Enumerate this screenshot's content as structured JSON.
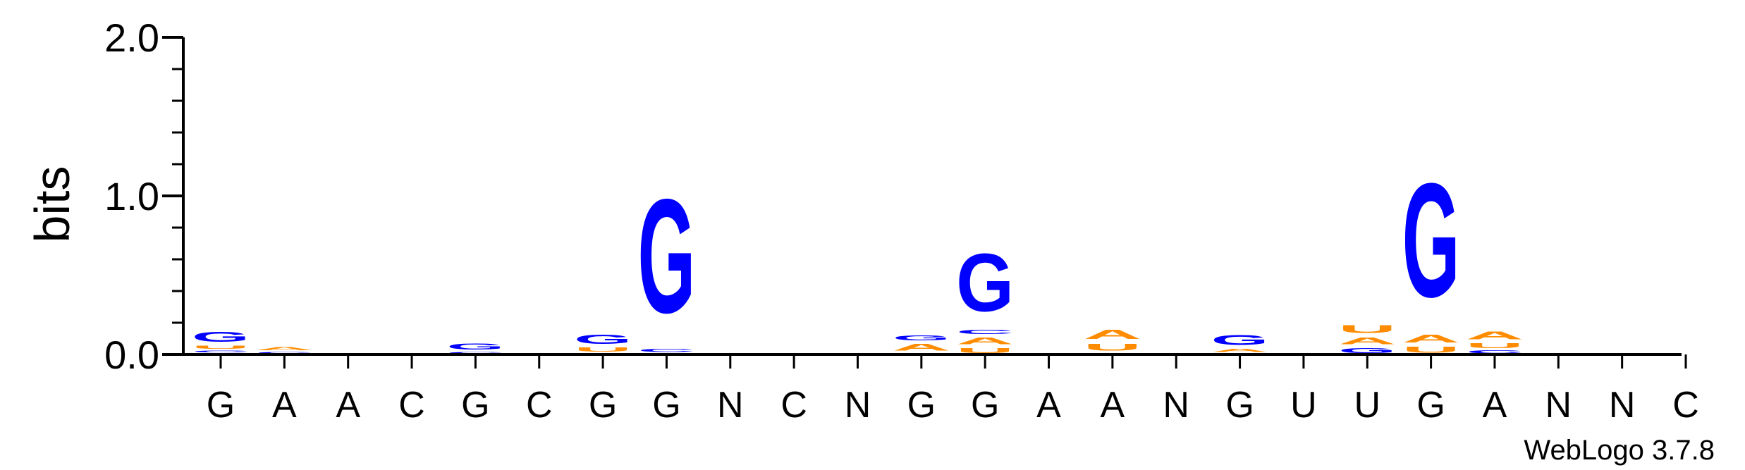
{
  "chart_data": {
    "type": "sequence-logo",
    "ylabel": "bits",
    "ylim": [
      0,
      2.0
    ],
    "yticks": [
      {
        "value": 0.0,
        "label": "0.0"
      },
      {
        "value": 1.0,
        "label": "1.0"
      },
      {
        "value": 2.0,
        "label": "2.0"
      }
    ],
    "x_labels": [
      "G",
      "A",
      "A",
      "C",
      "G",
      "C",
      "G",
      "G",
      "N",
      "C",
      "N",
      "G",
      "G",
      "A",
      "A",
      "N",
      "G",
      "U",
      "U",
      "G",
      "A",
      "N",
      "N",
      "C"
    ],
    "colors": {
      "G": "#0000ff",
      "C": "#0000ff",
      "A": "#ff8c00",
      "U": "#ff8c00"
    },
    "stacks": [
      {
        "letters": [
          {
            "l": "A",
            "h": 0.01
          },
          {
            "l": "C",
            "h": 0.02
          },
          {
            "l": "U",
            "h": 0.03
          },
          {
            "l": "G",
            "h": 0.1
          }
        ]
      },
      {
        "letters": [
          {
            "l": "C",
            "h": 0.02
          },
          {
            "l": "A",
            "h": 0.03
          }
        ]
      },
      {
        "letters": []
      },
      {
        "letters": []
      },
      {
        "letters": [
          {
            "l": "C",
            "h": 0.02
          },
          {
            "l": "G",
            "h": 0.06
          }
        ]
      },
      {
        "letters": []
      },
      {
        "letters": [
          {
            "l": "A",
            "h": 0.01
          },
          {
            "l": "U",
            "h": 0.04
          },
          {
            "l": "G",
            "h": 0.09
          }
        ]
      },
      {
        "letters": [
          {
            "l": "A",
            "h": 0.01
          },
          {
            "l": "C",
            "h": 0.03
          },
          {
            "l": "G",
            "h": 1.15
          }
        ]
      },
      {
        "letters": [
          {
            "l": "A",
            "h": 0.01
          }
        ]
      },
      {
        "letters": [
          {
            "l": "A",
            "h": 0.01
          }
        ]
      },
      {
        "letters": [
          {
            "l": "A",
            "h": 0.01
          }
        ]
      },
      {
        "letters": [
          {
            "l": "U",
            "h": 0.01
          },
          {
            "l": "A",
            "h": 0.07
          },
          {
            "l": "G",
            "h": 0.05
          }
        ]
      },
      {
        "letters": [
          {
            "l": "U",
            "h": 0.05
          },
          {
            "l": "A",
            "h": 0.07
          },
          {
            "l": "C",
            "h": 0.04
          },
          {
            "l": "G",
            "h": 0.58
          }
        ]
      },
      {
        "letters": []
      },
      {
        "letters": [
          {
            "l": "C",
            "h": 0.01
          },
          {
            "l": "U",
            "h": 0.07
          },
          {
            "l": "A",
            "h": 0.09
          }
        ]
      },
      {
        "letters": []
      },
      {
        "letters": [
          {
            "l": "C",
            "h": 0.01
          },
          {
            "l": "A",
            "h": 0.03
          },
          {
            "l": "G",
            "h": 0.1
          }
        ]
      },
      {
        "letters": []
      },
      {
        "letters": [
          {
            "l": "G",
            "h": 0.05
          },
          {
            "l": "A",
            "h": 0.07
          },
          {
            "l": "U",
            "h": 0.08
          }
        ]
      },
      {
        "letters": [
          {
            "l": "U",
            "h": 0.06
          },
          {
            "l": "A",
            "h": 0.08
          },
          {
            "l": "G",
            "h": 1.15
          }
        ]
      },
      {
        "letters": [
          {
            "l": "C",
            "h": 0.03
          },
          {
            "l": "U",
            "h": 0.05
          },
          {
            "l": "A",
            "h": 0.08
          }
        ]
      },
      {
        "letters": []
      },
      {
        "letters": []
      },
      {
        "letters": []
      }
    ],
    "grid": false
  },
  "footer": {
    "credit": "WebLogo 3.7.8"
  }
}
